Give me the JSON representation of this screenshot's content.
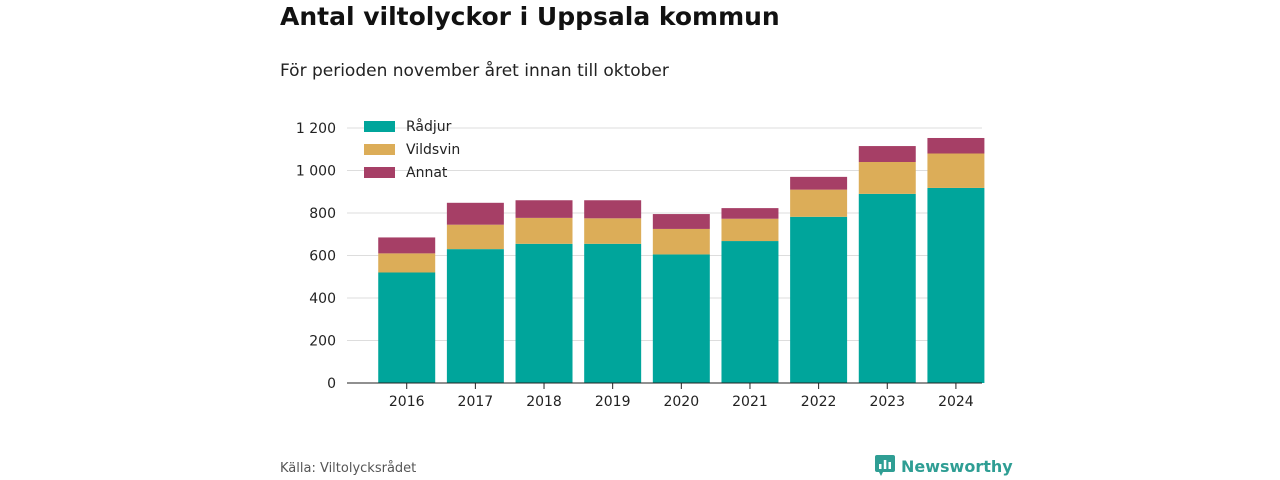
{
  "title": "Antal viltolyckor i Uppsala kommun",
  "subtitle": "För perioden november året innan till oktober",
  "source": "Källa: Viltolycksrådet",
  "brand": {
    "name": "Newsworthy",
    "icon": "newsworthy-logo-icon",
    "color": "#2f9e94"
  },
  "chart_data": {
    "type": "bar",
    "stacked": true,
    "categories": [
      "2016",
      "2017",
      "2018",
      "2019",
      "2020",
      "2021",
      "2022",
      "2023",
      "2024"
    ],
    "series": [
      {
        "name": "Rådjur",
        "color": "#00a59b",
        "values": [
          520,
          630,
          655,
          655,
          605,
          668,
          782,
          890,
          918
        ]
      },
      {
        "name": "Vildsvin",
        "color": "#dcad58",
        "values": [
          90,
          115,
          122,
          120,
          120,
          105,
          128,
          150,
          162
        ]
      },
      {
        "name": "Annat",
        "color": "#a63f66",
        "values": [
          75,
          103,
          83,
          85,
          70,
          50,
          60,
          75,
          73
        ]
      }
    ],
    "yticks": [
      "0",
      "200",
      "400",
      "600",
      "800",
      "1 000",
      "1 200"
    ],
    "ylim": [
      0,
      1200
    ],
    "grid": true,
    "legend": "top-left"
  }
}
